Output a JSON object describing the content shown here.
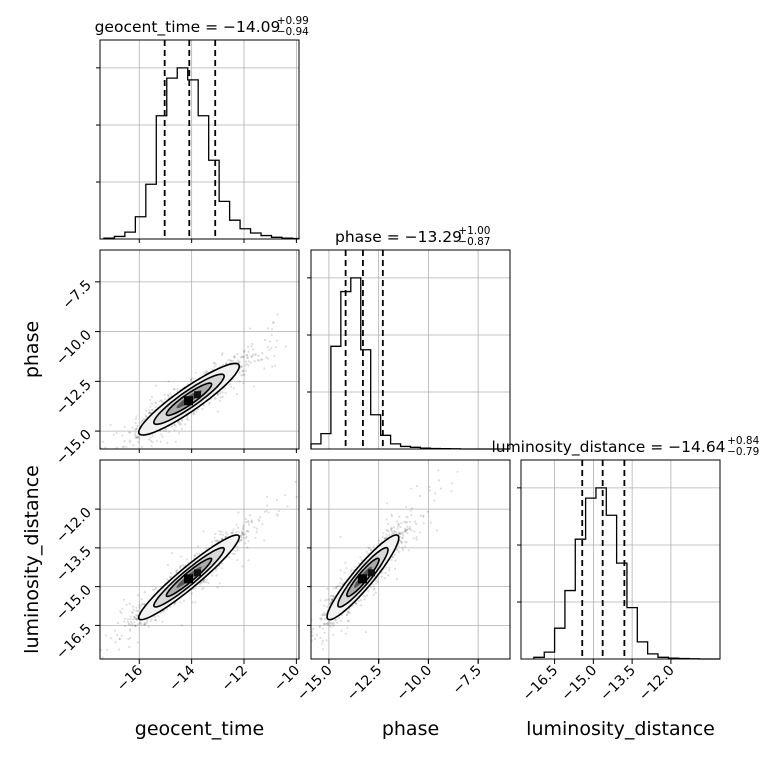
{
  "chart_data": {
    "type": "corner",
    "parameters": [
      "geocent_time",
      "phase",
      "luminosity_distance"
    ],
    "grid": true,
    "diagonal": [
      {
        "param": "geocent_time",
        "title_prefix": "geocent_time = ",
        "median": "−14.09",
        "plus": "+0.99",
        "minus": "−0.94",
        "quantiles": [
          -15.03,
          -14.09,
          -13.1
        ],
        "range": [
          -17.5,
          -9.9
        ],
        "hist_edges_start": -17.35,
        "hist_bin_width": 0.4,
        "hist_counts": [
          0.005,
          0.015,
          0.04,
          0.13,
          0.32,
          0.72,
          0.94,
          1.0,
          0.93,
          0.72,
          0.46,
          0.22,
          0.11,
          0.06,
          0.035,
          0.02,
          0.01,
          0.005,
          0.003
        ]
      },
      {
        "param": "phase",
        "title_prefix": "phase = ",
        "median": "−13.29",
        "plus": "+1.00",
        "minus": "−0.87",
        "quantiles": [
          -14.16,
          -13.29,
          -12.29
        ],
        "range": [
          -15.9,
          -5.9
        ],
        "hist_edges_start": -15.9,
        "hist_bin_width": 0.5,
        "hist_counts": [
          0.03,
          0.09,
          0.6,
          0.92,
          1.0,
          0.58,
          0.2,
          0.08,
          0.03,
          0.015,
          0.01,
          0.005,
          0.003,
          0.002,
          0.001,
          0.0,
          0.0,
          0.0,
          0.0,
          0.0
        ]
      },
      {
        "param": "luminosity_distance",
        "title_prefix": "luminosity_distance = ",
        "median": "−14.64",
        "plus": "+0.84",
        "minus": "−0.79",
        "quantiles": [
          -15.43,
          -14.64,
          -13.8
        ],
        "range": [
          -17.8,
          -10.1
        ],
        "hist_edges_start": -17.3,
        "hist_bin_width": 0.4,
        "hist_counts": [
          0.01,
          0.04,
          0.18,
          0.4,
          0.7,
          0.94,
          1.0,
          0.84,
          0.56,
          0.3,
          0.1,
          0.03,
          0.01,
          0.005,
          0.003,
          0.001,
          0.0,
          0.0,
          0.0
        ]
      }
    ],
    "pairs": [
      {
        "x": "geocent_time",
        "y": "phase",
        "center": [
          -14.1,
          -13.4
        ],
        "std": [
          0.96,
          0.9
        ],
        "corr": 0.92
      },
      {
        "x": "geocent_time",
        "y": "luminosity_distance",
        "center": [
          -14.1,
          -14.64
        ],
        "std": [
          0.96,
          0.82
        ],
        "corr": 0.95
      },
      {
        "x": "phase",
        "y": "luminosity_distance",
        "center": [
          -13.29,
          -14.64
        ],
        "std": [
          0.9,
          0.82
        ],
        "corr": 0.93
      }
    ],
    "axis_ticks": {
      "geocent_time": {
        "values": [
          -16,
          -14,
          -12,
          -10
        ],
        "labels": [
          "−16",
          "−14",
          "−12",
          "−10"
        ],
        "range": [
          -17.5,
          -9.9
        ]
      },
      "phase": {
        "values": [
          -15.0,
          -12.5,
          -10.0,
          -7.5
        ],
        "labels": [
          "−15.0",
          "−12.5",
          "−10.0",
          "−7.5"
        ],
        "range": [
          -15.9,
          -5.9
        ]
      },
      "luminosity_distance": {
        "values": [
          -16.5,
          -15.0,
          -13.5,
          -12.0
        ],
        "labels": [
          "−16.5",
          "−15.0",
          "−13.5",
          "−12.0"
        ],
        "range": [
          -17.8,
          -10.1
        ]
      }
    },
    "axis_labels": {
      "x": [
        "geocent_time",
        "phase",
        "luminosity_distance"
      ],
      "y": [
        "phase",
        "luminosity_distance"
      ]
    }
  }
}
